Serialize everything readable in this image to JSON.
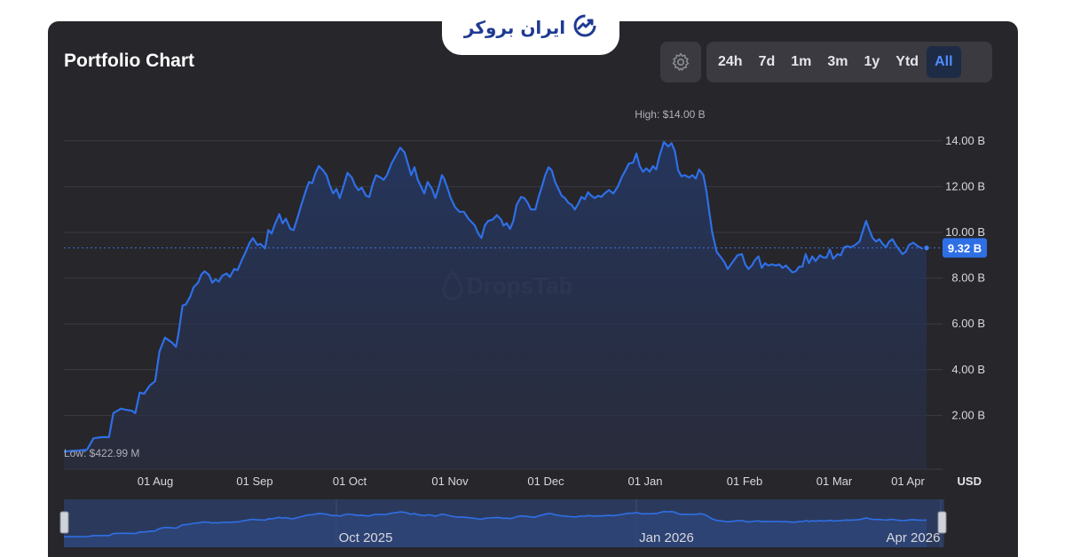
{
  "brand": {
    "text": "ایران بروکر"
  },
  "header": {
    "title": "Portfolio Chart"
  },
  "controls": {
    "timeframes": [
      {
        "label": "24h",
        "active": false
      },
      {
        "label": "7d",
        "active": false
      },
      {
        "label": "1m",
        "active": false
      },
      {
        "label": "3m",
        "active": false
      },
      {
        "label": "1y",
        "active": false
      },
      {
        "label": "Ytd",
        "active": false
      },
      {
        "label": "All",
        "active": true
      }
    ]
  },
  "chart_data": {
    "type": "area",
    "series": [
      {
        "values": [
          [
            0,
            0.42
          ],
          [
            7,
            0.45
          ],
          [
            14,
            0.47
          ],
          [
            21,
            0.5
          ],
          [
            27,
            1.0
          ],
          [
            34,
            1.05
          ],
          [
            41,
            1.05
          ],
          [
            45,
            2.1
          ],
          [
            52,
            2.3
          ],
          [
            56,
            2.25
          ],
          [
            62,
            2.2
          ],
          [
            65,
            2.1
          ],
          [
            69,
            3.0
          ],
          [
            73,
            2.95
          ],
          [
            78,
            3.3
          ],
          [
            83,
            3.5
          ],
          [
            87,
            4.8
          ],
          [
            92,
            5.4
          ],
          [
            98,
            5.2
          ],
          [
            102,
            5.0
          ],
          [
            104,
            5.5
          ],
          [
            108,
            6.8
          ],
          [
            111,
            6.85
          ],
          [
            115,
            7.2
          ],
          [
            118,
            7.6
          ],
          [
            122,
            7.8
          ],
          [
            125,
            8.15
          ],
          [
            128,
            8.3
          ],
          [
            132,
            8.15
          ],
          [
            135,
            7.8
          ],
          [
            138,
            7.95
          ],
          [
            141,
            7.85
          ],
          [
            144,
            8.1
          ],
          [
            148,
            8.2
          ],
          [
            151,
            8.05
          ],
          [
            155,
            8.4
          ],
          [
            158,
            8.35
          ],
          [
            162,
            8.8
          ],
          [
            166,
            9.2
          ],
          [
            169,
            9.55
          ],
          [
            172,
            9.75
          ],
          [
            176,
            9.45
          ],
          [
            179,
            9.5
          ],
          [
            183,
            9.3
          ],
          [
            186,
            10.1
          ],
          [
            189,
            9.95
          ],
          [
            192,
            10.35
          ],
          [
            196,
            10.8
          ],
          [
            199,
            10.4
          ],
          [
            202,
            10.6
          ],
          [
            206,
            10.15
          ],
          [
            209,
            10.1
          ],
          [
            213,
            10.7
          ],
          [
            216,
            11.2
          ],
          [
            220,
            11.8
          ],
          [
            223,
            12.2
          ],
          [
            226,
            12.15
          ],
          [
            229,
            12.6
          ],
          [
            232,
            12.9
          ],
          [
            236,
            12.7
          ],
          [
            239,
            12.5
          ],
          [
            242,
            12.05
          ],
          [
            245,
            11.7
          ],
          [
            248,
            11.9
          ],
          [
            251,
            11.5
          ],
          [
            254,
            11.95
          ],
          [
            258,
            12.6
          ],
          [
            262,
            12.4
          ],
          [
            265,
            12.05
          ],
          [
            268,
            11.85
          ],
          [
            271,
            11.95
          ],
          [
            275,
            11.6
          ],
          [
            278,
            11.55
          ],
          [
            281,
            12.1
          ],
          [
            284,
            12.5
          ],
          [
            288,
            12.4
          ],
          [
            291,
            12.3
          ],
          [
            294,
            12.5
          ],
          [
            298,
            13.0
          ],
          [
            302,
            13.35
          ],
          [
            306,
            13.7
          ],
          [
            310,
            13.5
          ],
          [
            313,
            13.0
          ],
          [
            316,
            12.5
          ],
          [
            319,
            12.85
          ],
          [
            322,
            12.3
          ],
          [
            325,
            12.0
          ],
          [
            328,
            11.7
          ],
          [
            331,
            12.2
          ],
          [
            335,
            11.9
          ],
          [
            338,
            11.5
          ],
          [
            341,
            11.95
          ],
          [
            344,
            12.5
          ],
          [
            346,
            12.35
          ],
          [
            349,
            11.95
          ],
          [
            352,
            11.5
          ],
          [
            356,
            11.1
          ],
          [
            360,
            10.9
          ],
          [
            364,
            10.9
          ],
          [
            368,
            10.6
          ],
          [
            371,
            10.45
          ],
          [
            374,
            10.3
          ],
          [
            377,
            9.95
          ],
          [
            380,
            9.75
          ],
          [
            383,
            10.3
          ],
          [
            386,
            10.5
          ],
          [
            390,
            10.55
          ],
          [
            394,
            10.75
          ],
          [
            398,
            10.55
          ],
          [
            400,
            10.3
          ],
          [
            403,
            10.4
          ],
          [
            406,
            10.15
          ],
          [
            409,
            10.5
          ],
          [
            412,
            11.2
          ],
          [
            416,
            11.55
          ],
          [
            419,
            11.5
          ],
          [
            422,
            11.3
          ],
          [
            425,
            11.0
          ],
          [
            429,
            11.0
          ],
          [
            432,
            11.55
          ],
          [
            435,
            12.0
          ],
          [
            438,
            12.5
          ],
          [
            441,
            12.85
          ],
          [
            444,
            12.7
          ],
          [
            447,
            12.2
          ],
          [
            450,
            11.9
          ],
          [
            453,
            11.6
          ],
          [
            456,
            11.5
          ],
          [
            459,
            11.3
          ],
          [
            462,
            11.2
          ],
          [
            465,
            11.0
          ],
          [
            468,
            11.25
          ],
          [
            471,
            11.55
          ],
          [
            474,
            11.45
          ],
          [
            477,
            11.75
          ],
          [
            480,
            11.6
          ],
          [
            483,
            11.5
          ],
          [
            486,
            11.6
          ],
          [
            489,
            11.55
          ],
          [
            492,
            11.7
          ],
          [
            496,
            11.85
          ],
          [
            500,
            11.7
          ],
          [
            504,
            12.0
          ],
          [
            508,
            12.45
          ],
          [
            511,
            12.7
          ],
          [
            514,
            13.0
          ],
          [
            518,
            13.05
          ],
          [
            521,
            13.45
          ],
          [
            524,
            12.9
          ],
          [
            527,
            12.65
          ],
          [
            530,
            12.8
          ],
          [
            533,
            12.65
          ],
          [
            536,
            12.9
          ],
          [
            539,
            12.75
          ],
          [
            542,
            13.35
          ],
          [
            546,
            13.95
          ],
          [
            550,
            13.75
          ],
          [
            553,
            13.9
          ],
          [
            556,
            13.55
          ],
          [
            559,
            12.7
          ],
          [
            562,
            12.45
          ],
          [
            565,
            12.5
          ],
          [
            569,
            12.4
          ],
          [
            572,
            12.5
          ],
          [
            575,
            12.35
          ],
          [
            578,
            12.75
          ],
          [
            582,
            12.5
          ],
          [
            585,
            11.7
          ],
          [
            587,
            11.0
          ],
          [
            590,
            10.0
          ],
          [
            594,
            9.15
          ],
          [
            598,
            8.9
          ],
          [
            601,
            8.7
          ],
          [
            604,
            8.4
          ],
          [
            607,
            8.6
          ],
          [
            610,
            8.8
          ],
          [
            613,
            9.0
          ],
          [
            617,
            9.05
          ],
          [
            620,
            8.6
          ],
          [
            623,
            8.4
          ],
          [
            626,
            8.55
          ],
          [
            629,
            8.8
          ],
          [
            632,
            8.95
          ],
          [
            635,
            8.45
          ],
          [
            638,
            8.65
          ],
          [
            641,
            8.55
          ],
          [
            644,
            8.6
          ],
          [
            648,
            8.55
          ],
          [
            651,
            8.6
          ],
          [
            654,
            8.45
          ],
          [
            657,
            8.55
          ],
          [
            660,
            8.4
          ],
          [
            663,
            8.25
          ],
          [
            666,
            8.3
          ],
          [
            669,
            8.5
          ],
          [
            672,
            8.5
          ],
          [
            675,
            9.05
          ],
          [
            678,
            8.65
          ],
          [
            681,
            8.95
          ],
          [
            684,
            8.75
          ],
          [
            688,
            9.0
          ],
          [
            691,
            8.9
          ],
          [
            694,
            8.9
          ],
          [
            697,
            9.25
          ],
          [
            700,
            8.85
          ],
          [
            704,
            9.05
          ],
          [
            707,
            9.0
          ],
          [
            710,
            9.35
          ],
          [
            713,
            9.4
          ],
          [
            716,
            9.35
          ],
          [
            720,
            9.45
          ],
          [
            724,
            9.6
          ],
          [
            726,
            9.9
          ],
          [
            730,
            10.5
          ],
          [
            733,
            10.1
          ],
          [
            736,
            9.75
          ],
          [
            739,
            9.6
          ],
          [
            742,
            9.7
          ],
          [
            745,
            9.5
          ],
          [
            748,
            9.35
          ],
          [
            751,
            9.6
          ],
          [
            754,
            9.7
          ],
          [
            757,
            9.45
          ],
          [
            760,
            9.25
          ],
          [
            763,
            9.05
          ],
          [
            766,
            9.15
          ],
          [
            769,
            9.45
          ],
          [
            773,
            9.55
          ],
          [
            777,
            9.4
          ],
          [
            781,
            9.3
          ],
          [
            785,
            9.32
          ]
        ]
      }
    ],
    "ylim": [
      0,
      15
    ],
    "yticks": [
      {
        "value": 2,
        "label": "2.00 B"
      },
      {
        "value": 4,
        "label": "4.00 B"
      },
      {
        "value": 6,
        "label": "6.00 B"
      },
      {
        "value": 8,
        "label": "8.00 B"
      },
      {
        "value": 10,
        "label": "10.00 B"
      },
      {
        "value": 12,
        "label": "12.00 B"
      },
      {
        "value": 14,
        "label": "14.00 B"
      }
    ],
    "xticks": [
      {
        "label": "01 Aug"
      },
      {
        "label": "01 Sep"
      },
      {
        "label": "01 Oct"
      },
      {
        "label": "01 Nov"
      },
      {
        "label": "01 Dec"
      },
      {
        "label": "01 Jan"
      },
      {
        "label": "01 Feb"
      },
      {
        "label": "01 Mar"
      },
      {
        "label": "01 Apr"
      }
    ],
    "currency": "USD",
    "current": {
      "value": 9.32,
      "label": "9.32 B"
    },
    "high": {
      "label": "High: $14.00 B"
    },
    "low": {
      "label": "Low: $422.99 M"
    },
    "watermark": "DropsTab",
    "navigator_labels": [
      "Oct 2025",
      "Jan 2026",
      "Apr 2026"
    ],
    "grid": true,
    "line_color": "#2f6fe6"
  }
}
